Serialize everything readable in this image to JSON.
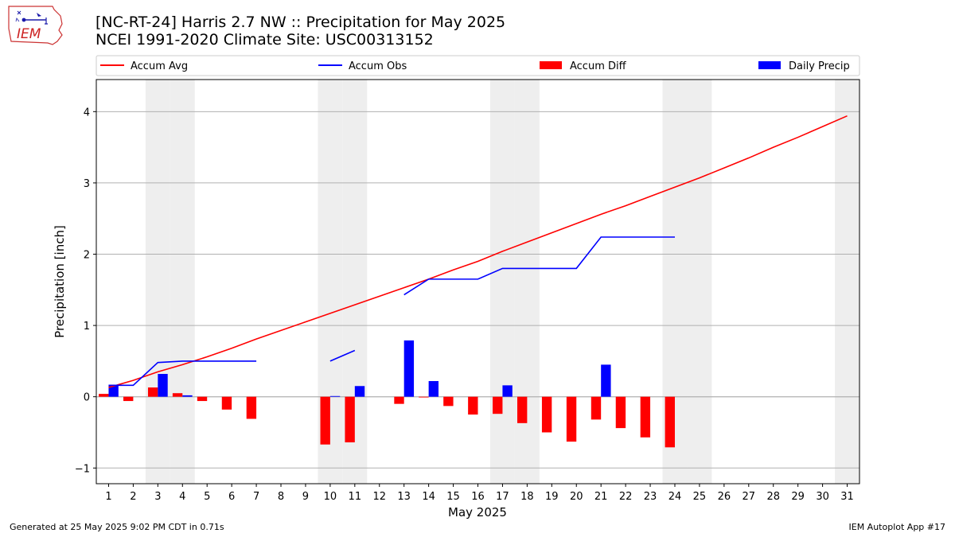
{
  "header": {
    "title_line1": "[NC-RT-24] Harris 2.7 NW :: Precipitation for May 2025",
    "title_line2": "NCEI 1991-2020 Climate Site: USC00313152",
    "logo_text": "IEM"
  },
  "footer": {
    "generated": "Generated at 25 May 2025 9:02 PM CDT in 0.71s",
    "app": "IEM Autoplot App #17"
  },
  "colors": {
    "avg": "#ff0000",
    "obs": "#0000ff",
    "diff": "#ff0000",
    "precip": "#0000ff",
    "weekend_shade": "#eeeeee",
    "grid": "#b0b0b0"
  },
  "chart_data": {
    "type": "bar",
    "xlabel": "May 2025",
    "ylabel": "Precipitation [inch]",
    "xlim": [
      0.5,
      31.5
    ],
    "ylim": [
      -1.22,
      4.45
    ],
    "y_ticks": [
      -1,
      0,
      1,
      2,
      3,
      4
    ],
    "x_ticks": [
      1,
      2,
      3,
      4,
      5,
      6,
      7,
      8,
      9,
      10,
      11,
      12,
      13,
      14,
      15,
      16,
      17,
      18,
      19,
      20,
      21,
      22,
      23,
      24,
      25,
      26,
      27,
      28,
      29,
      30,
      31
    ],
    "grid": "horizontal",
    "legend_position": "top",
    "weekend_days": [
      3,
      4,
      10,
      11,
      17,
      18,
      24,
      25,
      31
    ],
    "legend": [
      "Accum Avg",
      "Accum Obs",
      "Accum Diff",
      "Daily Precip"
    ],
    "series": [
      {
        "name": "Accum Avg",
        "type": "line",
        "x": [
          1,
          2,
          3,
          4,
          5,
          6,
          7,
          8,
          9,
          10,
          11,
          12,
          13,
          14,
          15,
          16,
          17,
          18,
          19,
          20,
          21,
          22,
          23,
          24,
          25,
          26,
          27,
          28,
          29,
          30,
          31
        ],
        "values": [
          0.13,
          0.23,
          0.35,
          0.45,
          0.56,
          0.68,
          0.81,
          0.93,
          1.05,
          1.17,
          1.29,
          1.41,
          1.53,
          1.65,
          1.78,
          1.9,
          2.04,
          2.17,
          2.3,
          2.43,
          2.56,
          2.68,
          2.81,
          2.94,
          3.07,
          3.21,
          3.35,
          3.5,
          3.64,
          3.79,
          3.94
        ]
      },
      {
        "name": "Accum Obs",
        "type": "line",
        "segments": [
          {
            "x": [
              1,
              2,
              3,
              4,
              5,
              6,
              7
            ],
            "values": [
              0.16,
              0.16,
              0.48,
              0.5,
              0.5,
              0.5,
              0.5
            ]
          },
          {
            "x": [
              10,
              11
            ],
            "values": [
              0.5,
              0.65
            ]
          },
          {
            "x": [
              13,
              14,
              15,
              16,
              17,
              18,
              19,
              20,
              21,
              22,
              23,
              24
            ],
            "values": [
              1.43,
              1.65,
              1.65,
              1.65,
              1.8,
              1.8,
              1.8,
              1.8,
              2.24,
              2.24,
              2.24,
              2.24
            ]
          }
        ]
      },
      {
        "name": "Accum Diff",
        "type": "bar",
        "x": [
          1,
          2,
          3,
          4,
          5,
          6,
          7,
          10,
          11,
          13,
          14,
          15,
          16,
          17,
          18,
          19,
          20,
          21,
          22,
          23,
          24
        ],
        "values": [
          0.04,
          -0.06,
          0.13,
          0.05,
          -0.06,
          -0.18,
          -0.31,
          -0.67,
          -0.64,
          -0.1,
          -0.01,
          -0.13,
          -0.25,
          -0.24,
          -0.37,
          -0.5,
          -0.63,
          -0.32,
          -0.44,
          -0.57,
          -0.71
        ]
      },
      {
        "name": "Daily Precip",
        "type": "bar",
        "x": [
          1,
          3,
          4,
          10,
          11,
          13,
          14,
          17,
          21
        ],
        "values": [
          0.16,
          0.32,
          0.02,
          0.01,
          0.15,
          0.79,
          0.22,
          0.16,
          0.45
        ]
      }
    ]
  }
}
